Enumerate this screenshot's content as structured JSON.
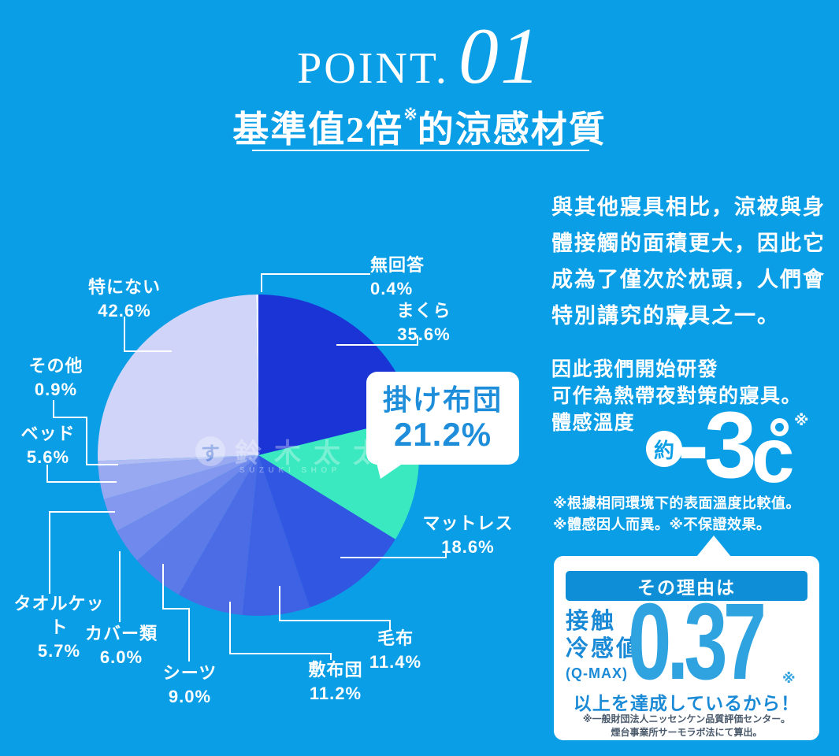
{
  "page": {
    "background_color": "#0a9ee6",
    "accent_blue": "#1e8edb",
    "box_header_blue": "#0d8ed6",
    "value_light_blue": "#2fa3e0"
  },
  "header": {
    "eyebrow": "POINT.",
    "number": "01",
    "title_main": "基準值2倍",
    "title_sup": "※",
    "title_tail": "的涼感材質"
  },
  "intro": {
    "paragraph": "與其他寢具相比，涼被與身體接觸的面積更大，因此它成為了僅次於枕頭，人們會特別講究的寢具之一。",
    "arrow_icon": "▼"
  },
  "development": {
    "line1": "因此我們開始研發",
    "line2": "可作為熱帶夜對策的寢具。",
    "line3": "體感溫度"
  },
  "temperature": {
    "approx": "約",
    "value": "-3",
    "unit": "c",
    "degree_mark": "°",
    "note_mark": "※"
  },
  "temp_disclaimers": {
    "line1": "※根據相同環境下的表面溫度比較值。",
    "line2": "※體感因人而異。※不保證效果。"
  },
  "reason_box": {
    "header": "その理由は",
    "metric_line1": "接触",
    "metric_line2": "冷感値",
    "metric_line3": "(Q-MAX)",
    "value": "0.37",
    "note_mark": "※",
    "achievement": "以上を達成しているから！",
    "footnote1": "※一般財団法人ニッセンケン品質評価センター。",
    "footnote2": "煙台事業所サーモラボ法にて算出。"
  },
  "watermark": {
    "logo_char": "す",
    "name": "鈴木太太",
    "subtitle": "SUZUKI SHOP"
  },
  "callout": {
    "label": "掛け布団",
    "pct": "21.2%"
  },
  "chart_data": {
    "type": "pie",
    "center": [
      328,
      578
    ],
    "radius": 204,
    "start_angle_deg": 0,
    "direction": "clockwise",
    "value_total": 168.2,
    "legend_position": "around",
    "slices": [
      {
        "label": "まくら",
        "value": 35.6,
        "pct": "35.6%",
        "color": "#1b34d6"
      },
      {
        "label": "掛け布団",
        "value": 21.2,
        "pct": "21.2%",
        "color": "#3ae9c0"
      },
      {
        "label": "マットレス",
        "value": 18.6,
        "pct": "18.6%",
        "color": "#3056e2"
      },
      {
        "label": "毛布",
        "value": 11.4,
        "pct": "11.4%",
        "color": "#3f61e4"
      },
      {
        "label": "敷布団",
        "value": 11.2,
        "pct": "11.2%",
        "color": "#4c6ce6"
      },
      {
        "label": "シーツ",
        "value": 9.0,
        "pct": "9.0%",
        "color": "#5d7ae9"
      },
      {
        "label": "カバー類",
        "value": 6.0,
        "pct": "6.0%",
        "color": "#7089ec"
      },
      {
        "label": "タオルケット",
        "value": 5.7,
        "pct": "5.7%",
        "color": "#8398ee"
      },
      {
        "label": "ベッド",
        "value": 5.6,
        "pct": "5.6%",
        "color": "#98a8f1"
      },
      {
        "label": "その他",
        "value": 0.9,
        "pct": "0.9%",
        "color": "#b0bbf4"
      },
      {
        "label": "特にない",
        "value": 42.6,
        "pct": "42.6%",
        "color": "#cfd4f8"
      },
      {
        "label": "無回答",
        "value": 0.4,
        "pct": "0.4%",
        "color": "#eef2fe"
      }
    ]
  }
}
